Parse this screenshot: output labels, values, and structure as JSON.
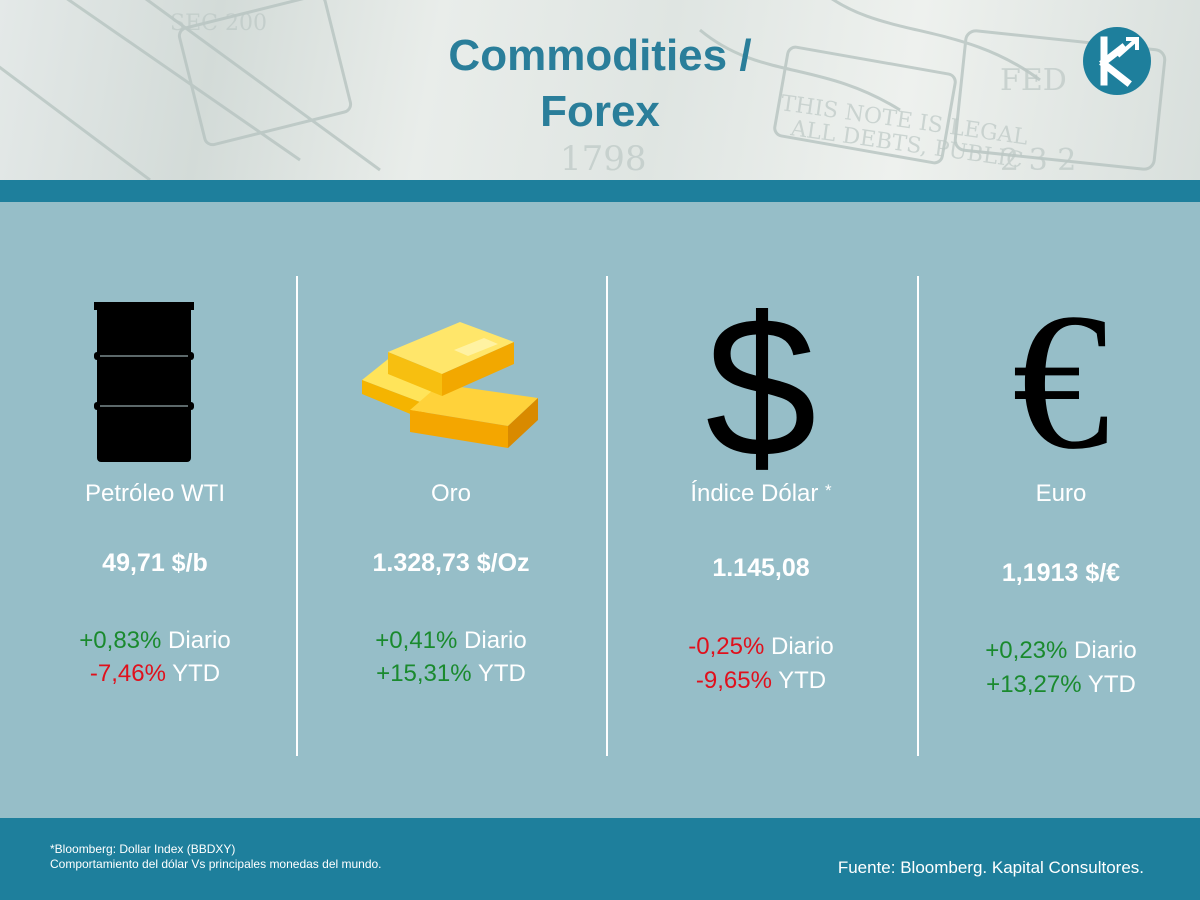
{
  "header": {
    "title_line1": "Commodities /",
    "title_line2": "Forex"
  },
  "assets": [
    {
      "icon": "oil-barrel-icon",
      "name": "Petróleo WTI",
      "value": "49,71 $/b",
      "daily_change": "+0,83%",
      "daily_label": "Diario",
      "ytd_change": "-7,46%",
      "ytd_label": "YTD"
    },
    {
      "icon": "gold-bars-icon",
      "name": "Oro",
      "value": "1.328,73 $/Oz",
      "daily_change": "+0,41%",
      "daily_label": "Diario",
      "ytd_change": "+15,31%",
      "ytd_label": "YTD"
    },
    {
      "icon": "dollar-sign-icon",
      "icon_glyph": "$",
      "name": "Índice Dólar",
      "name_suffix": "*",
      "value": "1.145,08",
      "daily_change": "-0,25%",
      "daily_label": "Diario",
      "ytd_change": "-9,65%",
      "ytd_label": "YTD"
    },
    {
      "icon": "euro-sign-icon",
      "icon_glyph": "€",
      "name": "Euro",
      "value": "1,1913 $/€",
      "daily_change": "+0,23%",
      "daily_label": "Diario",
      "ytd_change": "+13,27%",
      "ytd_label": "YTD"
    }
  ],
  "footer": {
    "note_line1": "*Bloomberg: Dollar Index (BBDXY)",
    "note_line2": "Comportamiento del dólar Vs principales monedas del mundo.",
    "source": "Fuente: Bloomberg. Kapital Consultores."
  },
  "colors": {
    "accent": "#1e7f9c",
    "title": "#2a7e9a",
    "panel": "#96bec8",
    "positive": "#1a8a2e",
    "negative": "#e0101c"
  }
}
